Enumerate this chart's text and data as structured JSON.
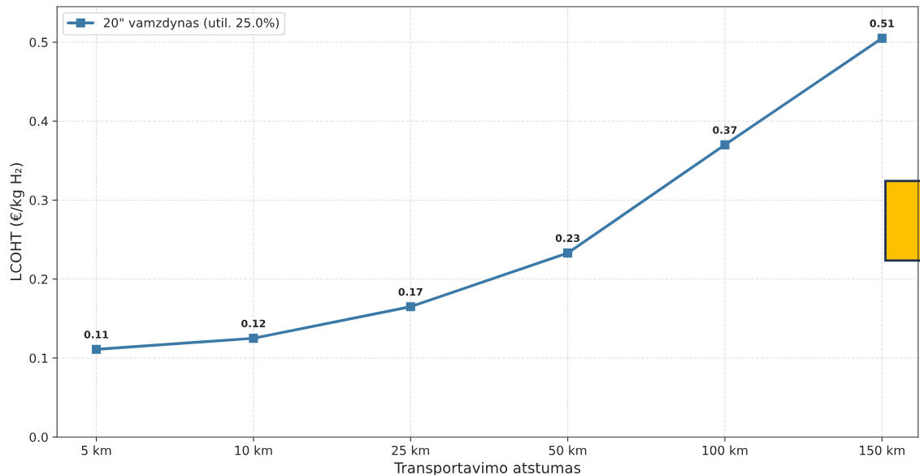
{
  "chart_data": {
    "type": "line",
    "xlabel": "Transportavimo atstumas",
    "ylabel": "LCOHT (€/kg H₂)",
    "categories": [
      "5 km",
      "10 km",
      "25 km",
      "50 km",
      "100 km",
      "150 km"
    ],
    "series": [
      {
        "name": "20\" vamzdynas (util. 25.0%)",
        "color": "#3b79a8",
        "values": [
          0.111,
          0.125,
          0.165,
          0.233,
          0.37,
          0.505
        ],
        "value_labels": [
          "0.11",
          "0.12",
          "0.17",
          "0.23",
          "0.37",
          "0.51"
        ]
      }
    ],
    "ylim": [
      0,
      0.545
    ],
    "yticks": [
      {
        "value": 0,
        "label": "0.0"
      },
      0.1,
      0.2,
      0.3,
      0.4,
      0.5
    ],
    "grid": true,
    "legend": "top left",
    "marker": "square",
    "line_style": "solid"
  }
}
